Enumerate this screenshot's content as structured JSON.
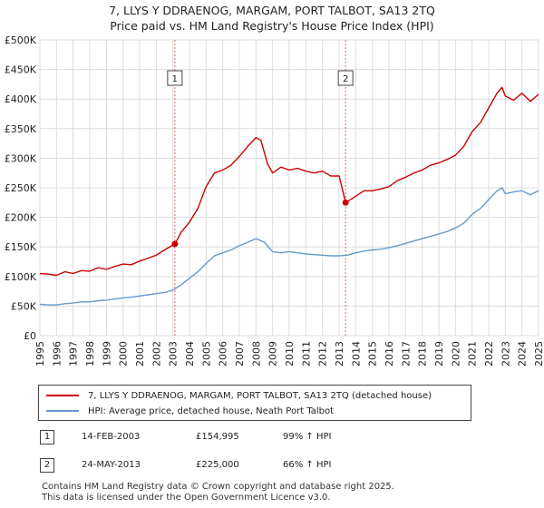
{
  "title_line1": "7, LLYS Y DDRAENOG, MARGAM, PORT TALBOT, SA13 2TQ",
  "title_line2": "Price paid vs. HM Land Registry's House Price Index (HPI)",
  "colors": {
    "property": "#cc0000",
    "hpi": "#6699cc",
    "marker_line": "#e06060",
    "grid": "#dddddd"
  },
  "chart_data": {
    "type": "line",
    "xlim": [
      1995,
      2025
    ],
    "ylim": [
      0,
      500000
    ],
    "x_ticks": [
      "1995",
      "1996",
      "1997",
      "1998",
      "1999",
      "2000",
      "2001",
      "2002",
      "2003",
      "2004",
      "2005",
      "2006",
      "2007",
      "2008",
      "2009",
      "2010",
      "2011",
      "2012",
      "2013",
      "2014",
      "2015",
      "2016",
      "2017",
      "2018",
      "2019",
      "2020",
      "2021",
      "2022",
      "2023",
      "2024",
      "2025"
    ],
    "y_ticks": [
      {
        "value": 0,
        "label": "£0"
      },
      {
        "value": 50000,
        "label": "£50K"
      },
      {
        "value": 100000,
        "label": "£100K"
      },
      {
        "value": 150000,
        "label": "£150K"
      },
      {
        "value": 200000,
        "label": "£200K"
      },
      {
        "value": 250000,
        "label": "£250K"
      },
      {
        "value": 300000,
        "label": "£300K"
      },
      {
        "value": 350000,
        "label": "£350K"
      },
      {
        "value": 400000,
        "label": "£400K"
      },
      {
        "value": 450000,
        "label": "£450K"
      },
      {
        "value": 500000,
        "label": "£500K"
      }
    ],
    "series": [
      {
        "name": "7, LLYS Y DDRAENOG, MARGAM, PORT TALBOT, SA13 2TQ (detached house)",
        "color": "#cc0000",
        "points": [
          [
            1995.0,
            105000
          ],
          [
            1995.5,
            104000
          ],
          [
            1996.0,
            102000
          ],
          [
            1996.5,
            108000
          ],
          [
            1997.0,
            105000
          ],
          [
            1997.5,
            110000
          ],
          [
            1998.0,
            109000
          ],
          [
            1998.5,
            115000
          ],
          [
            1999.0,
            112000
          ],
          [
            1999.5,
            117000
          ],
          [
            2000.0,
            121000
          ],
          [
            2000.5,
            120000
          ],
          [
            2001.0,
            126000
          ],
          [
            2001.5,
            131000
          ],
          [
            2002.0,
            136000
          ],
          [
            2002.5,
            145000
          ],
          [
            2003.12,
            154995
          ],
          [
            2003.5,
            175000
          ],
          [
            2004.0,
            192000
          ],
          [
            2004.5,
            215000
          ],
          [
            2005.0,
            252000
          ],
          [
            2005.5,
            275000
          ],
          [
            2006.0,
            280000
          ],
          [
            2006.5,
            288000
          ],
          [
            2007.0,
            303000
          ],
          [
            2007.5,
            320000
          ],
          [
            2008.0,
            335000
          ],
          [
            2008.3,
            330000
          ],
          [
            2008.7,
            290000
          ],
          [
            2009.0,
            275000
          ],
          [
            2009.5,
            285000
          ],
          [
            2010.0,
            280000
          ],
          [
            2010.5,
            283000
          ],
          [
            2011.0,
            278000
          ],
          [
            2011.5,
            275000
          ],
          [
            2012.0,
            278000
          ],
          [
            2012.5,
            270000
          ],
          [
            2013.0,
            270000
          ],
          [
            2013.39,
            225000
          ],
          [
            2013.8,
            232000
          ],
          [
            2014.5,
            245000
          ],
          [
            2015.0,
            245000
          ],
          [
            2015.5,
            248000
          ],
          [
            2016.0,
            252000
          ],
          [
            2016.5,
            262000
          ],
          [
            2017.0,
            268000
          ],
          [
            2017.5,
            275000
          ],
          [
            2018.0,
            280000
          ],
          [
            2018.5,
            288000
          ],
          [
            2019.0,
            292000
          ],
          [
            2019.5,
            298000
          ],
          [
            2020.0,
            305000
          ],
          [
            2020.5,
            320000
          ],
          [
            2021.0,
            345000
          ],
          [
            2021.5,
            360000
          ],
          [
            2022.0,
            385000
          ],
          [
            2022.5,
            410000
          ],
          [
            2022.8,
            420000
          ],
          [
            2023.0,
            405000
          ],
          [
            2023.5,
            398000
          ],
          [
            2024.0,
            410000
          ],
          [
            2024.5,
            396000
          ],
          [
            2025.0,
            408000
          ]
        ]
      },
      {
        "name": "HPI: Average price, detached house, Neath Port Talbot",
        "color": "#6699cc",
        "points": [
          [
            1995.0,
            53000
          ],
          [
            1995.5,
            52000
          ],
          [
            1996.0,
            52000
          ],
          [
            1996.5,
            54000
          ],
          [
            1997.0,
            55000
          ],
          [
            1997.5,
            57000
          ],
          [
            1998.0,
            57000
          ],
          [
            1998.5,
            59000
          ],
          [
            1999.0,
            60000
          ],
          [
            1999.5,
            62000
          ],
          [
            2000.0,
            64000
          ],
          [
            2000.5,
            65000
          ],
          [
            2001.0,
            67000
          ],
          [
            2001.5,
            69000
          ],
          [
            2002.0,
            71000
          ],
          [
            2002.5,
            73000
          ],
          [
            2003.0,
            77000
          ],
          [
            2003.5,
            86000
          ],
          [
            2004.0,
            97000
          ],
          [
            2004.5,
            108000
          ],
          [
            2005.0,
            122000
          ],
          [
            2005.5,
            135000
          ],
          [
            2006.0,
            140000
          ],
          [
            2006.5,
            145000
          ],
          [
            2007.0,
            152000
          ],
          [
            2007.5,
            158000
          ],
          [
            2008.0,
            164000
          ],
          [
            2008.5,
            158000
          ],
          [
            2009.0,
            142000
          ],
          [
            2009.5,
            140000
          ],
          [
            2010.0,
            142000
          ],
          [
            2010.5,
            140000
          ],
          [
            2011.0,
            138000
          ],
          [
            2011.5,
            137000
          ],
          [
            2012.0,
            136000
          ],
          [
            2012.5,
            135000
          ],
          [
            2013.0,
            135000
          ],
          [
            2013.5,
            136000
          ],
          [
            2014.0,
            140000
          ],
          [
            2014.5,
            143000
          ],
          [
            2015.0,
            145000
          ],
          [
            2015.5,
            146000
          ],
          [
            2016.0,
            149000
          ],
          [
            2016.5,
            152000
          ],
          [
            2017.0,
            156000
          ],
          [
            2017.5,
            160000
          ],
          [
            2018.0,
            164000
          ],
          [
            2018.5,
            168000
          ],
          [
            2019.0,
            172000
          ],
          [
            2019.5,
            176000
          ],
          [
            2020.0,
            182000
          ],
          [
            2020.5,
            190000
          ],
          [
            2021.0,
            205000
          ],
          [
            2021.5,
            215000
          ],
          [
            2022.0,
            230000
          ],
          [
            2022.5,
            245000
          ],
          [
            2022.8,
            250000
          ],
          [
            2023.0,
            240000
          ],
          [
            2023.5,
            243000
          ],
          [
            2024.0,
            245000
          ],
          [
            2024.5,
            238000
          ],
          [
            2025.0,
            245000
          ]
        ]
      }
    ],
    "sales": [
      {
        "label": "1",
        "x": 2003.12,
        "y": 154995
      },
      {
        "label": "2",
        "x": 2013.39,
        "y": 225000
      }
    ]
  },
  "legend": {
    "property_label": "7, LLYS Y DDRAENOG, MARGAM, PORT TALBOT, SA13 2TQ (detached house)",
    "hpi_label": "HPI: Average price, detached house, Neath Port Talbot"
  },
  "transactions": [
    {
      "num": "1",
      "date": "14-FEB-2003",
      "price": "£154,995",
      "hpi": "99% ↑ HPI"
    },
    {
      "num": "2",
      "date": "24-MAY-2013",
      "price": "£225,000",
      "hpi": "66% ↑ HPI"
    }
  ],
  "footer_line1": "Contains HM Land Registry data © Crown copyright and database right 2025.",
  "footer_line2": "This data is licensed under the Open Government Licence v3.0."
}
